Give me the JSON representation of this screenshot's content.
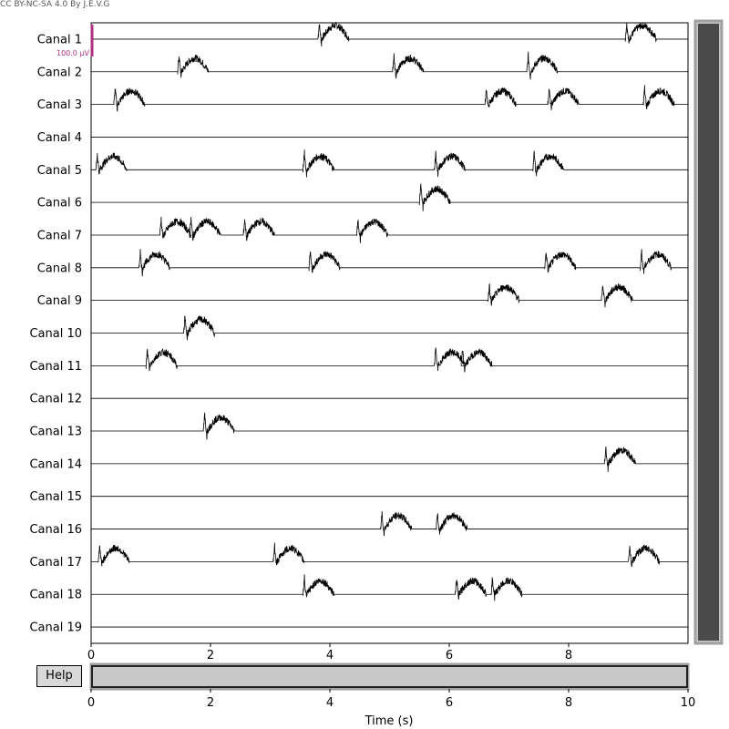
{
  "credit": "CC BY-NC-SA 4.0 By J.E.V.G",
  "help_label": "Help",
  "scalebar_label": "100.0 µV",
  "colors": {
    "trace": "#000000",
    "scalebar": "#b03080",
    "scrollbar_track": "#c8c8c8",
    "scrollbar_thumb": "#4a4a4a",
    "scrollbar_border": "#a0a0a0"
  },
  "chart_data": {
    "type": "line",
    "title": "",
    "xlabel": "Time (s)",
    "ylabel": "",
    "xlim": [
      0,
      10
    ],
    "xticks": [
      0,
      2,
      4,
      6,
      8
    ],
    "time_slider": {
      "xlim": [
        0,
        10
      ],
      "xticks": [
        0,
        2,
        4,
        6,
        8,
        10
      ],
      "view": [
        0,
        10
      ]
    },
    "vertical_scrollbar": {
      "view_fraction": [
        0,
        1
      ]
    },
    "channels": [
      {
        "name": "Canal 1",
        "events": [
          3.8,
          8.95
        ]
      },
      {
        "name": "Canal 2",
        "events": [
          1.45,
          5.05,
          7.3
        ]
      },
      {
        "name": "Canal 3",
        "events": [
          0.38,
          6.6,
          7.65,
          9.25
        ]
      },
      {
        "name": "Canal 4",
        "events": []
      },
      {
        "name": "Canal 5",
        "events": [
          0.08,
          3.55,
          5.75,
          7.4
        ]
      },
      {
        "name": "Canal 6",
        "events": [
          5.5
        ]
      },
      {
        "name": "Canal 7",
        "events": [
          1.15,
          1.65,
          2.55,
          4.45
        ]
      },
      {
        "name": "Canal 8",
        "events": [
          0.8,
          3.65,
          7.6,
          9.2
        ]
      },
      {
        "name": "Canal 9",
        "events": [
          6.65,
          8.55
        ]
      },
      {
        "name": "Canal 10",
        "events": [
          1.55
        ]
      },
      {
        "name": "Canal 11",
        "events": [
          0.92,
          5.75,
          6.2
        ]
      },
      {
        "name": "Canal 12",
        "events": []
      },
      {
        "name": "Canal 13",
        "events": [
          1.88
        ]
      },
      {
        "name": "Canal 14",
        "events": [
          8.6
        ]
      },
      {
        "name": "Canal 15",
        "events": []
      },
      {
        "name": "Canal 16",
        "events": [
          4.85,
          5.78
        ]
      },
      {
        "name": "Canal 17",
        "events": [
          0.12,
          3.05,
          9.0
        ]
      },
      {
        "name": "Canal 18",
        "events": [
          3.55,
          6.1,
          6.7
        ]
      },
      {
        "name": "Canal 19",
        "events": []
      }
    ]
  }
}
